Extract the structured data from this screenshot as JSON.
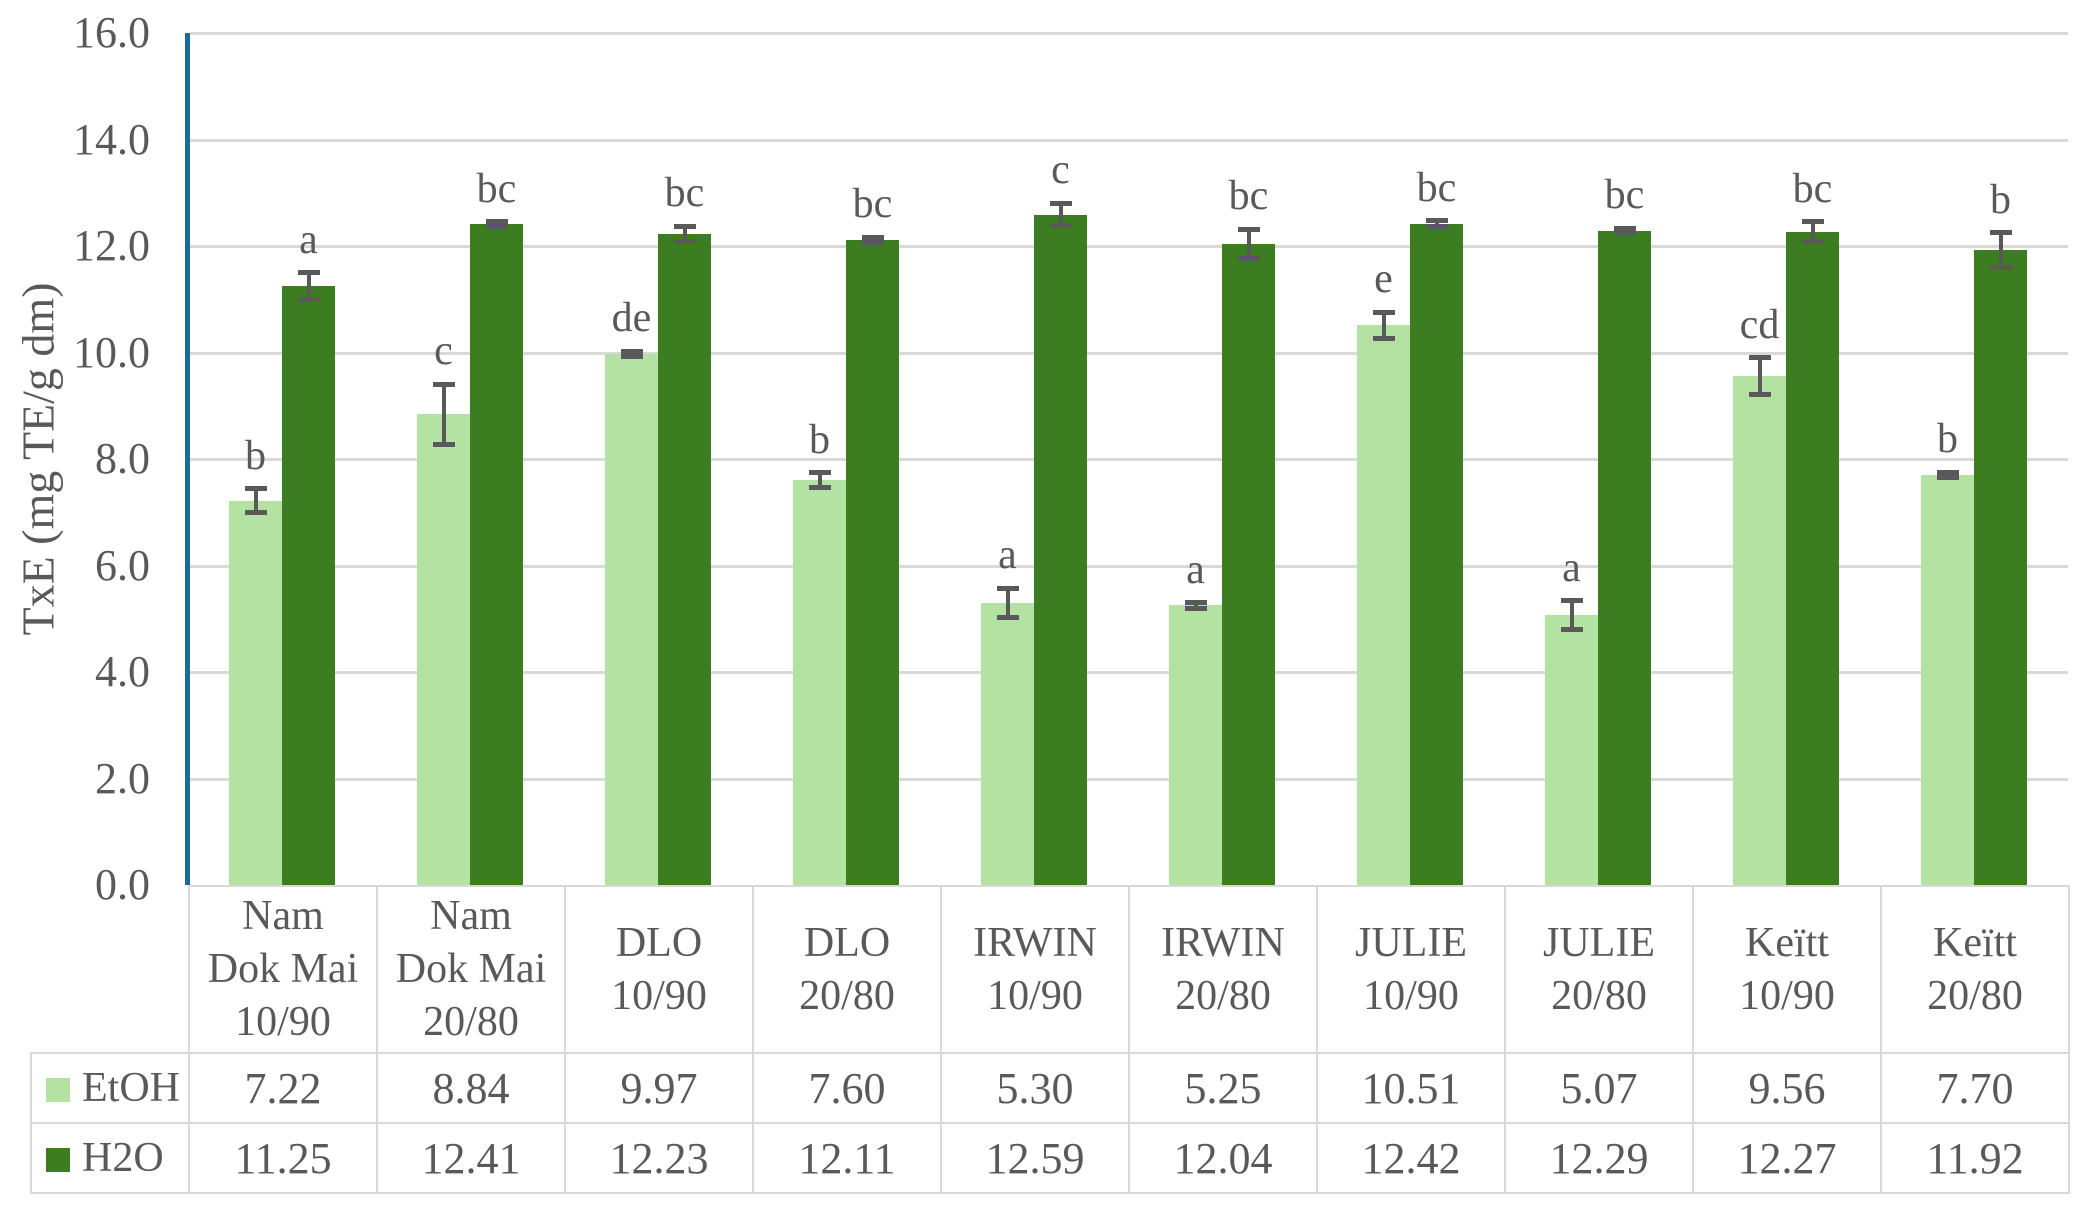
{
  "chart_data": {
    "type": "bar",
    "title": "",
    "xlabel": "",
    "ylabel": "TxE (mg TE/g dm)",
    "ylim": [
      0,
      16
    ],
    "ytick_labels": [
      "0.0",
      "2.0",
      "4.0",
      "6.0",
      "8.0",
      "10.0",
      "12.0",
      "14.0",
      "16.0"
    ],
    "grid": true,
    "legend_position": "table-left",
    "categories": [
      "Nam Dok Mai 10/90",
      "Nam Dok Mai 20/80",
      "DLO 10/90",
      "DLO 20/80",
      "IRWIN 10/90",
      "IRWIN 20/80",
      "JULIE 10/90",
      "JULIE 20/80",
      "Keïtt 10/90",
      "Keïtt 20/80"
    ],
    "category_label_lines": [
      [
        "Nam",
        "Dok Mai",
        "10/90"
      ],
      [
        "Nam",
        "Dok Mai",
        "20/80"
      ],
      [
        "DLO",
        "10/90"
      ],
      [
        "DLO",
        "20/80"
      ],
      [
        "IRWIN",
        "10/90"
      ],
      [
        "IRWIN",
        "20/80"
      ],
      [
        "JULIE",
        "10/90"
      ],
      [
        "JULIE",
        "20/80"
      ],
      [
        "Keïtt",
        "10/90"
      ],
      [
        "Keïtt",
        "20/80"
      ]
    ],
    "series": [
      {
        "name": "EtOH",
        "color": "#b3e2a3",
        "values": [
          7.22,
          8.84,
          9.97,
          7.6,
          5.3,
          5.25,
          10.51,
          5.07,
          9.56,
          7.7
        ],
        "display": [
          "7.22",
          "8.84",
          "9.97",
          "7.60",
          "5.30",
          "5.25",
          "10.51",
          "5.07",
          "9.56",
          "7.70"
        ],
        "errors": [
          0.22,
          0.56,
          0.05,
          0.14,
          0.27,
          0.05,
          0.25,
          0.27,
          0.34,
          0.05
        ],
        "letters": [
          "b",
          "c",
          "de",
          "b",
          "a",
          "a",
          "e",
          "a",
          "cd",
          "b"
        ]
      },
      {
        "name": "H2O",
        "color": "#3d7d21",
        "values": [
          11.25,
          12.41,
          12.23,
          12.11,
          12.59,
          12.04,
          12.42,
          12.29,
          12.27,
          11.92
        ],
        "display": [
          "11.25",
          "12.41",
          "12.23",
          "12.11",
          "12.59",
          "12.04",
          "12.42",
          "12.29",
          "12.27",
          "11.92"
        ],
        "errors": [
          0.25,
          0.05,
          0.14,
          0.05,
          0.21,
          0.27,
          0.05,
          0.04,
          0.19,
          0.33
        ],
        "letters": [
          "a",
          "bc",
          "bc",
          "bc",
          "c",
          "bc",
          "bc",
          "bc",
          "bc",
          "b"
        ]
      }
    ],
    "colors": {
      "axis_line": "#1e6996",
      "gridline": "#d9d9d9",
      "table_border": "#d9d9d9",
      "text": "#595959",
      "error_bar": "#595959"
    }
  }
}
